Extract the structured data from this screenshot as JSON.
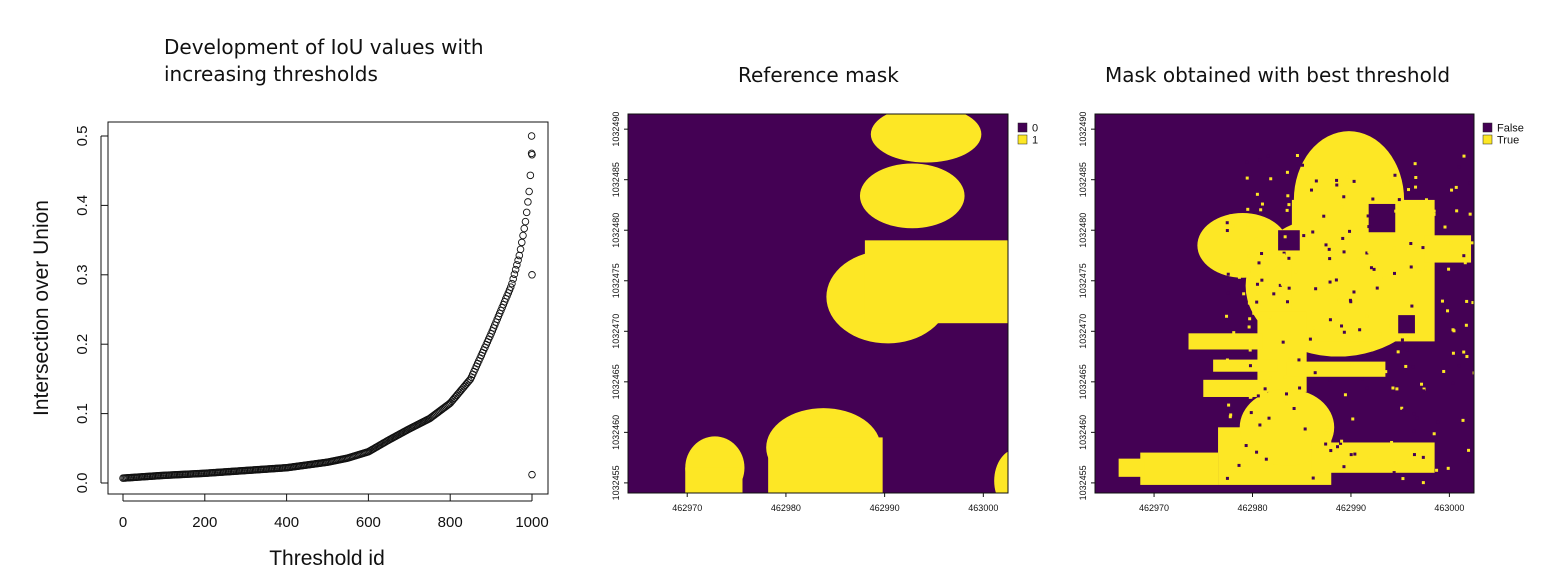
{
  "panels": {
    "left": {
      "title_line1": "Development of IoU values with",
      "title_line2": "increasing thresholds"
    },
    "middle": {
      "title": "Reference mask"
    },
    "right": {
      "title": "Mask obtained with best threshold"
    }
  },
  "chart_data": [
    {
      "type": "scatter",
      "title": "Development of IoU values with increasing thresholds",
      "xlabel": "Threshold id",
      "ylabel": "Intersection over Union",
      "xlim": [
        0,
        1000
      ],
      "ylim": [
        0,
        0.5
      ],
      "x_ticks": [
        0,
        200,
        400,
        600,
        800,
        1000
      ],
      "y_ticks": [
        0.0,
        0.1,
        0.2,
        0.3,
        0.4,
        0.5
      ],
      "x_tick_labels": [
        "0",
        "200",
        "400",
        "600",
        "800",
        "1000"
      ],
      "y_tick_labels": [
        "0.0",
        "0.1",
        "0.2",
        "0.3",
        "0.4",
        "0.5"
      ],
      "curve_knots": [
        [
          0,
          0.007
        ],
        [
          100,
          0.011
        ],
        [
          200,
          0.014
        ],
        [
          300,
          0.018
        ],
        [
          400,
          0.022
        ],
        [
          500,
          0.03
        ],
        [
          550,
          0.036
        ],
        [
          600,
          0.045
        ],
        [
          650,
          0.062
        ],
        [
          700,
          0.078
        ],
        [
          750,
          0.093
        ],
        [
          800,
          0.115
        ],
        [
          850,
          0.15
        ],
        [
          900,
          0.215
        ],
        [
          950,
          0.285
        ],
        [
          970,
          0.33
        ],
        [
          985,
          0.38
        ],
        [
          995,
          0.43
        ],
        [
          998,
          0.47
        ]
      ],
      "outliers": [
        [
          999,
          0.5
        ],
        [
          999,
          0.475
        ],
        [
          1000,
          0.473
        ],
        [
          1000,
          0.3
        ],
        [
          1000,
          0.012
        ]
      ],
      "marker": "open-circle",
      "grid": false
    },
    {
      "type": "heatmap",
      "title": "Reference mask",
      "x_ticks": [
        462970,
        462980,
        462990,
        463000
      ],
      "y_ticks": [
        1032455,
        1032460,
        1032465,
        1032470,
        1032475,
        1032480,
        1032485,
        1032490
      ],
      "x_tick_labels": [
        "462970",
        "462980",
        "462990",
        "463000"
      ],
      "y_tick_labels": [
        "1032455",
        "1032460",
        "1032465",
        "1032470",
        "1032475",
        "1032480",
        "1032485",
        "1032490"
      ],
      "xlim": [
        462964,
        463002.5
      ],
      "ylim": [
        1032454,
        1032491.5
      ],
      "legend": [
        {
          "label": "0",
          "color": "#440154"
        },
        {
          "label": "1",
          "color": "#fde725"
        }
      ],
      "legend_position": "top-right",
      "regions": [
        {
          "shape": "ellipse",
          "cx": 462994.2,
          "cy": 1032489.5,
          "rx": 5.6,
          "ry": 2.8
        },
        {
          "shape": "ellipse",
          "cx": 462992.8,
          "cy": 1032483.4,
          "rx": 5.3,
          "ry": 3.2
        },
        {
          "shape": "ellipse",
          "cx": 462990.3,
          "cy": 1032473.4,
          "rx": 6.2,
          "ry": 4.6
        },
        {
          "shape": "rect",
          "x0": 462988,
          "x1": 463002.5,
          "y0": 1032470.8,
          "y1": 1032479
        },
        {
          "shape": "ellipse",
          "cx": 462983.8,
          "cy": 1032458.5,
          "rx": 5.8,
          "ry": 3.9
        },
        {
          "shape": "rect",
          "x0": 462978.2,
          "x1": 462989.8,
          "y0": 1032454,
          "y1": 1032459.5
        },
        {
          "shape": "ellipse",
          "cx": 462972.8,
          "cy": 1032456.5,
          "rx": 3.0,
          "ry": 3.1
        },
        {
          "shape": "rect",
          "x0": 462969.8,
          "x1": 462975.6,
          "y0": 1032454,
          "y1": 1032456.5
        },
        {
          "shape": "ellipse",
          "cx": 463003.5,
          "cy": 1032455.2,
          "rx": 2.4,
          "ry": 3.2
        }
      ]
    },
    {
      "type": "heatmap",
      "title": "Mask obtained with best threshold",
      "x_ticks": [
        462970,
        462980,
        462990,
        463000
      ],
      "y_ticks": [
        1032455,
        1032460,
        1032465,
        1032470,
        1032475,
        1032480,
        1032485,
        1032490
      ],
      "x_tick_labels": [
        "462970",
        "462980",
        "462990",
        "463000"
      ],
      "y_tick_labels": [
        "1032455",
        "1032460",
        "1032465",
        "1032470",
        "1032475",
        "1032480",
        "1032485",
        "1032490"
      ],
      "xlim": [
        462964,
        463002.5
      ],
      "ylim": [
        1032454,
        1032491.5
      ],
      "legend": [
        {
          "label": "False",
          "color": "#440154"
        },
        {
          "label": "True",
          "color": "#fde725"
        }
      ],
      "legend_position": "top-right",
      "regions": [
        {
          "shape": "ellipse",
          "cx": 462989.8,
          "cy": 1032483.0,
          "rx": 5.6,
          "ry": 6.8
        },
        {
          "shape": "ellipse",
          "cx": 462988.7,
          "cy": 1032474.5,
          "rx": 9.4,
          "ry": 7.0
        },
        {
          "shape": "rect",
          "x0": 462984.0,
          "x1": 462998.5,
          "y0": 1032469.0,
          "y1": 1032483.0
        },
        {
          "shape": "ellipse",
          "cx": 462979.0,
          "cy": 1032478.5,
          "rx": 4.6,
          "ry": 3.2
        },
        {
          "shape": "rect",
          "x0": 462980.5,
          "x1": 462985.5,
          "y0": 1032464.0,
          "y1": 1032472.0
        },
        {
          "shape": "rect",
          "x0": 462976.5,
          "x1": 462988.0,
          "y0": 1032454.8,
          "y1": 1032460.5
        },
        {
          "shape": "ellipse",
          "cx": 462983.5,
          "cy": 1032460.5,
          "rx": 4.8,
          "ry": 3.8
        },
        {
          "shape": "rect",
          "x0": 462968.6,
          "x1": 462976.5,
          "y0": 1032454.8,
          "y1": 1032458.0
        },
        {
          "shape": "rect",
          "x0": 462966.4,
          "x1": 462969.0,
          "y0": 1032455.6,
          "y1": 1032457.4
        },
        {
          "shape": "rect",
          "x0": 462986.0,
          "x1": 462998.5,
          "y0": 1032456.0,
          "y1": 1032459.0
        },
        {
          "shape": "rect",
          "x0": 462997.5,
          "x1": 463002.2,
          "y0": 1032476.8,
          "y1": 1032479.5
        },
        {
          "shape": "rect",
          "x0": 462983.5,
          "x1": 462993.5,
          "y0": 1032465.5,
          "y1": 1032467.0
        },
        {
          "shape": "rect",
          "x0": 462975.0,
          "x1": 462981.5,
          "y0": 1032463.5,
          "y1": 1032465.2
        },
        {
          "shape": "rect",
          "x0": 462973.5,
          "x1": 462981.0,
          "y0": 1032468.2,
          "y1": 1032469.8
        },
        {
          "shape": "rect",
          "x0": 462976.0,
          "x1": 462982.5,
          "y0": 1032466.0,
          "y1": 1032467.2
        }
      ],
      "holes": [
        {
          "shape": "rect",
          "x0": 462991.8,
          "x1": 462994.5,
          "y0": 1032479.8,
          "y1": 1032482.6
        },
        {
          "shape": "rect",
          "x0": 462982.6,
          "x1": 462984.8,
          "y0": 1032478.0,
          "y1": 1032480.0
        },
        {
          "shape": "rect",
          "x0": 462994.8,
          "x1": 462996.5,
          "y0": 1032469.8,
          "y1": 1032471.6
        }
      ]
    }
  ]
}
